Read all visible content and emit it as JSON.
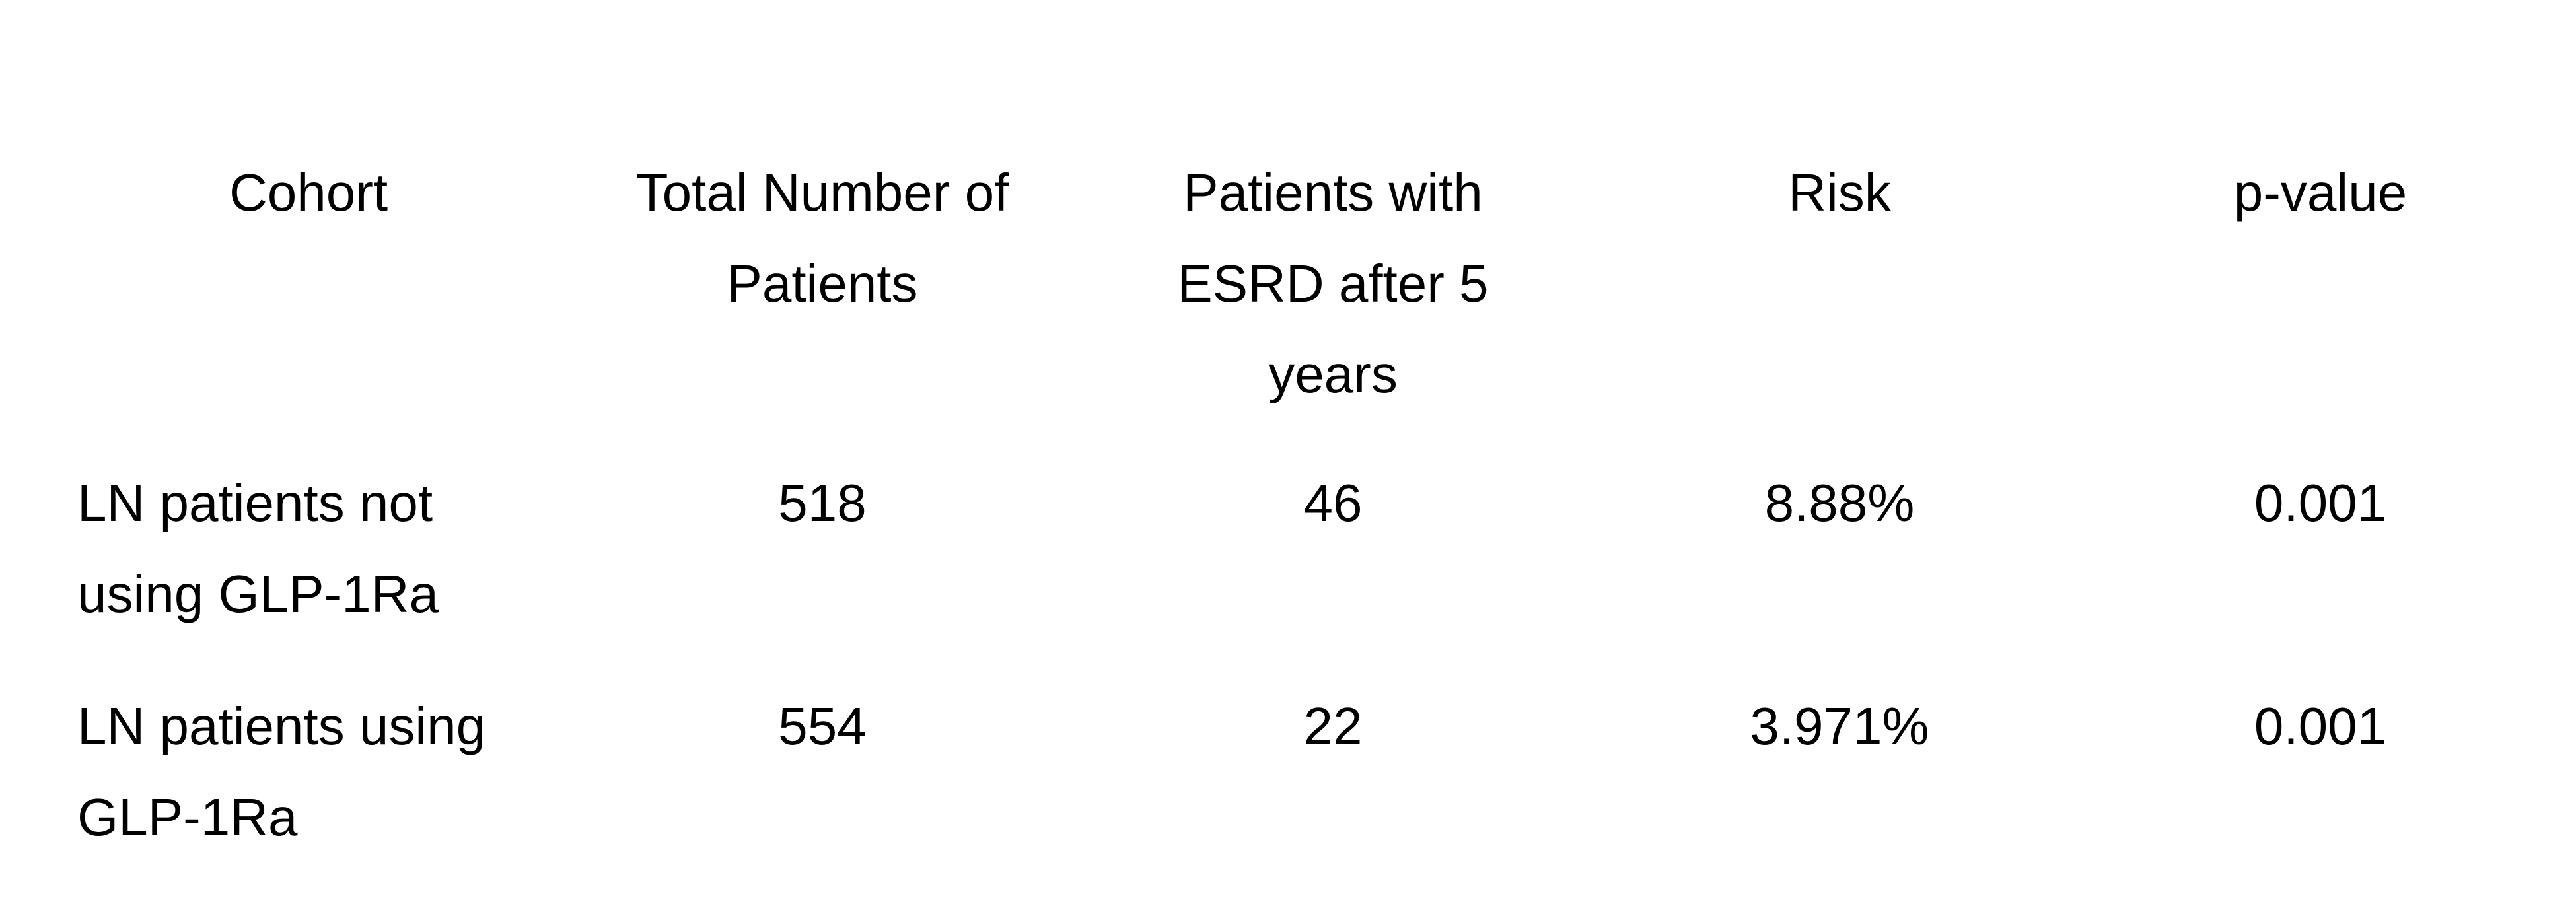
{
  "table": {
    "headers": [
      "Cohort",
      "Total Number of Patients",
      "Patients with ESRD after 5 years",
      "Risk",
      "p-value"
    ],
    "rows": [
      [
        "LN patients not using GLP-1Ra",
        "518",
        "46",
        "8.88%",
        "0.001"
      ],
      [
        "LN patients using GLP-1Ra",
        "554",
        "22",
        "3.971%",
        "0.001"
      ]
    ]
  }
}
